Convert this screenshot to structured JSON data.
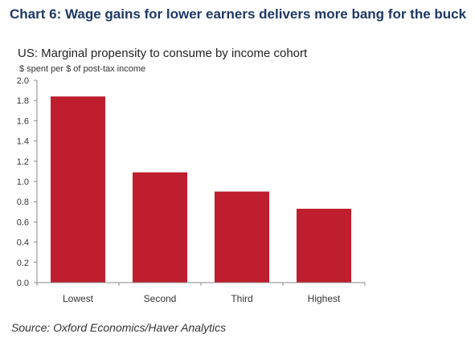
{
  "heading": "Chart 6: Wage gains for lower earners delivers more bang for the buck",
  "source": "Source: Oxford Economics/Haver Analytics",
  "chart_data": {
    "type": "bar",
    "title": "US: Marginal propensity to consume by income cohort",
    "subtitle": "$ spent per $ of post-tax income",
    "categories": [
      "Lowest",
      "Second",
      "Third",
      "Highest"
    ],
    "values": [
      1.84,
      1.09,
      0.9,
      0.73
    ],
    "ylim": [
      0,
      2.0
    ],
    "yticks": [
      "0.0",
      "0.2",
      "0.4",
      "0.6",
      "0.8",
      "1.0",
      "1.2",
      "1.4",
      "1.6",
      "1.8",
      "2.0"
    ],
    "grid": false,
    "bar_color": "#be1e2d"
  }
}
